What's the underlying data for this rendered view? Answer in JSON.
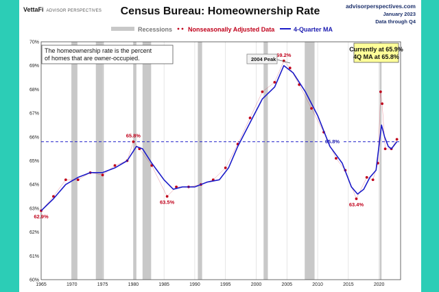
{
  "header": {
    "brand": "VettaFi",
    "brand_sub": "ADVISOR PERSPECTIVES",
    "title": "Census Bureau: Homeownership Rate",
    "site": "advisorperspectives.com",
    "date": "January 2023",
    "through": "Data through Q4"
  },
  "legend": {
    "recessions": "Recessions",
    "nsa": "Nonseasonally Adjusted Data",
    "ma": "4-Quarter MA"
  },
  "note_box": {
    "line1": "The homeownership rate is the percent",
    "line2": "of homes that are owner-occupied."
  },
  "current_box": {
    "line1": "Currently at 65.9%",
    "line2": "4Q MA at 65.8%"
  },
  "peak_label": "2004 Peak",
  "annotations": [
    {
      "x": 1965.0,
      "y": 62.9,
      "text": "62.9%"
    },
    {
      "x": 1980.0,
      "y": 65.8,
      "text": "65.8%"
    },
    {
      "x": 1985.5,
      "y": 63.5,
      "text": "63.5%"
    },
    {
      "x": 2004.5,
      "y": 69.2,
      "text": "69.2%"
    },
    {
      "x": 2016.3,
      "y": 63.4,
      "text": "63.4%"
    }
  ],
  "reference": {
    "y": 65.8,
    "text": "65.8%"
  },
  "colors": {
    "background": "#2ccdb6",
    "nsa_points": "#c0001a",
    "ma_line": "#1a1ac8",
    "recession": "#c8c8c8",
    "current_box": "#ffff99"
  },
  "chart_data": {
    "type": "line",
    "title": "Census Bureau: Homeownership Rate",
    "xlim": [
      1965,
      2023.5
    ],
    "ylim": [
      60,
      70
    ],
    "x_ticks": [
      1965,
      1970,
      1975,
      1980,
      1985,
      1990,
      1995,
      2000,
      2005,
      2010,
      2015,
      2020
    ],
    "y_ticks": [
      60,
      61,
      62,
      63,
      64,
      65,
      66,
      67,
      68,
      69,
      70
    ],
    "y_tick_suffix": "%",
    "grid": "vertical",
    "legend_placement": "top",
    "recessions": [
      [
        1969.9,
        1970.9
      ],
      [
        1973.9,
        1975.2
      ],
      [
        1980.0,
        1980.5
      ],
      [
        1981.5,
        1982.9
      ],
      [
        1990.5,
        1991.2
      ],
      [
        2001.2,
        2001.9
      ],
      [
        2007.9,
        2009.5
      ],
      [
        2020.1,
        2020.4
      ]
    ],
    "series": [
      {
        "name": "Nonseasonally Adjusted Data",
        "style": "points",
        "x": [
          1965.0,
          1967.0,
          1969.0,
          1971.0,
          1973.0,
          1975.0,
          1977.0,
          1979.0,
          1980.0,
          1981.0,
          1983.0,
          1985.5,
          1987.0,
          1989.0,
          1991.0,
          1993.0,
          1995.0,
          1997.0,
          1999.0,
          2001.0,
          2003.0,
          2004.5,
          2005.5,
          2007.0,
          2009.0,
          2011.0,
          2013.0,
          2014.5,
          2016.3,
          2018.0,
          2019.0,
          2019.8,
          2020.25,
          2020.5,
          2021.0,
          2022.0,
          2022.9
        ],
        "values": [
          62.9,
          63.5,
          64.2,
          64.2,
          64.5,
          64.4,
          64.8,
          65.0,
          65.8,
          65.5,
          64.8,
          63.5,
          63.9,
          63.9,
          64.0,
          64.2,
          64.7,
          65.7,
          66.8,
          67.9,
          68.3,
          69.2,
          68.9,
          68.2,
          67.2,
          66.2,
          65.1,
          64.6,
          63.4,
          64.3,
          64.2,
          64.9,
          67.9,
          67.4,
          65.5,
          65.5,
          65.9
        ]
      },
      {
        "name": "4-Quarter MA",
        "style": "line",
        "x": [
          1965.0,
          1967.0,
          1969.0,
          1971.0,
          1973.0,
          1975.0,
          1977.0,
          1979.0,
          1980.5,
          1981.5,
          1983.0,
          1985.0,
          1986.5,
          1988.0,
          1990.0,
          1992.0,
          1994.0,
          1995.5,
          1997.0,
          1999.0,
          2001.0,
          2003.0,
          2004.5,
          2006.0,
          2008.0,
          2010.0,
          2012.0,
          2014.0,
          2015.5,
          2016.5,
          2017.5,
          2018.5,
          2019.5,
          2020.4,
          2020.9,
          2021.5,
          2022.0,
          2022.9
        ],
        "values": [
          62.9,
          63.4,
          64.0,
          64.3,
          64.5,
          64.5,
          64.7,
          65.0,
          65.6,
          65.5,
          64.9,
          64.2,
          63.8,
          63.9,
          63.9,
          64.1,
          64.2,
          64.7,
          65.6,
          66.6,
          67.6,
          68.1,
          69.0,
          68.7,
          67.9,
          66.9,
          65.6,
          64.9,
          63.9,
          63.6,
          63.8,
          64.3,
          64.6,
          66.5,
          66.0,
          65.6,
          65.5,
          65.8
        ]
      }
    ]
  }
}
